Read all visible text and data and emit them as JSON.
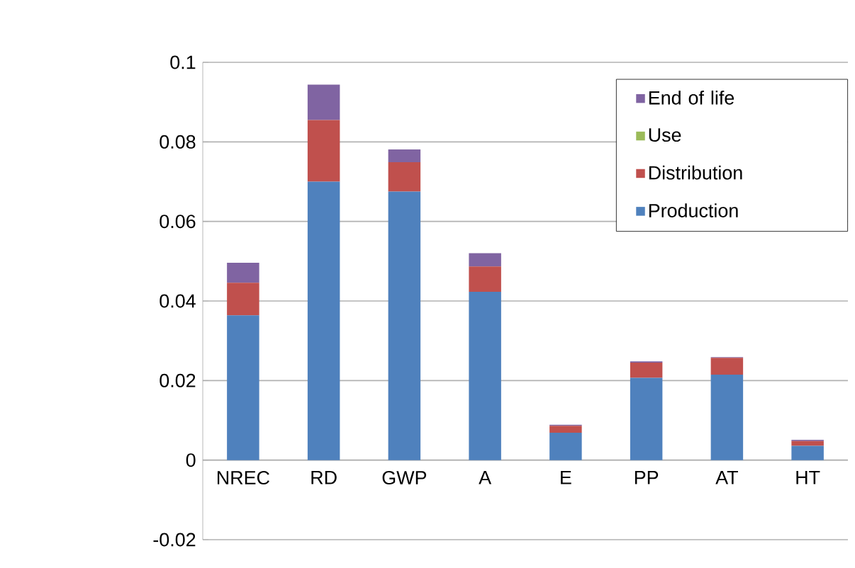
{
  "chart_data": {
    "type": "bar",
    "stacked": true,
    "categories": [
      "NREC",
      "RD",
      "GWP",
      "A",
      "E",
      "PP",
      "AT",
      "HT"
    ],
    "series": [
      {
        "name": "Production",
        "color": "#4f81bd",
        "values": [
          0.0364,
          0.07,
          0.0675,
          0.0423,
          0.0069,
          0.0207,
          0.0215,
          0.0036
        ]
      },
      {
        "name": "Distribution",
        "color": "#c0504d",
        "values": [
          0.0082,
          0.0155,
          0.0074,
          0.0064,
          0.0017,
          0.0038,
          0.0042,
          0.0012
        ]
      },
      {
        "name": "Use",
        "color": "#9bbb59",
        "values": [
          0,
          0,
          0,
          0,
          0,
          0,
          0,
          0
        ]
      },
      {
        "name": "End of life",
        "color": "#8064a2",
        "values": [
          0.005,
          0.0089,
          0.0032,
          0.0033,
          0.0003,
          0.0003,
          0.0002,
          0.0003
        ]
      }
    ],
    "ylim": [
      -0.02,
      0.1
    ],
    "yticks": [
      -0.02,
      0,
      0.02,
      0.04,
      0.06,
      0.08,
      0.1
    ],
    "grid": "y",
    "legend": "top right"
  }
}
